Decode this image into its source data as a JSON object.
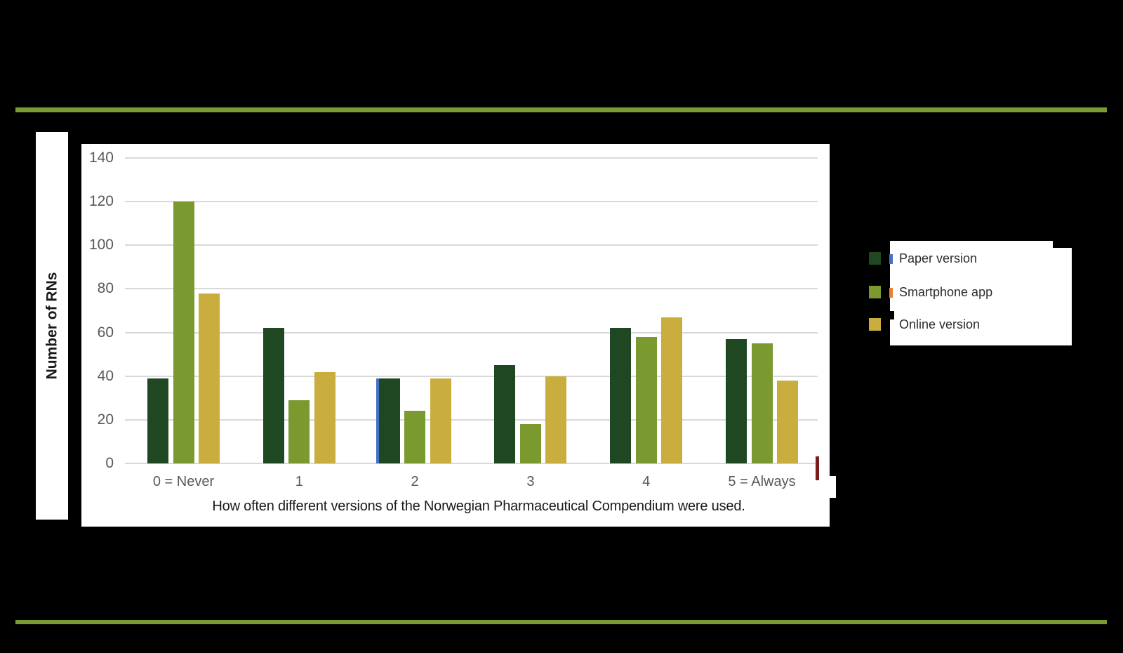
{
  "slide": {
    "background_color": "#000000",
    "accent_bar_color": "#7A9A33"
  },
  "chart_data": {
    "type": "bar",
    "title": "",
    "xlabel": "How often different versions of the Norwegian Pharmaceutical Compendium were used.",
    "ylabel": "Number of RNs",
    "categories": [
      "0 = Never",
      "1",
      "2",
      "3",
      "4",
      "5 = Always"
    ],
    "series": [
      {
        "name": "Paper version",
        "color": "#1F4722",
        "values": [
          39,
          62,
          39,
          45,
          62,
          57
        ]
      },
      {
        "name": "Smartphone app",
        "color": "#7A9A30",
        "values": [
          120,
          29,
          24,
          18,
          58,
          55
        ]
      },
      {
        "name": "Online version",
        "color": "#C9AD3E",
        "values": [
          78,
          42,
          39,
          40,
          67,
          38
        ]
      }
    ],
    "ylim": [
      0,
      140
    ],
    "yticks": [
      0,
      20,
      40,
      60,
      80,
      100,
      120,
      140
    ],
    "grid": true,
    "gridline_color": "#D9D9D9",
    "tick_label_color": "#595959",
    "plot_background": "#FFFFFF",
    "legend_position": "right"
  },
  "legend": {
    "remnant_marker_colors": [
      "#4472C4",
      "#ED7D31",
      null
    ]
  },
  "artifacts": {
    "blue_sliver_color": "#4472C4",
    "orange_sliver_color": "#ED7D31",
    "red_sliver_color": "#7B1D1D"
  }
}
